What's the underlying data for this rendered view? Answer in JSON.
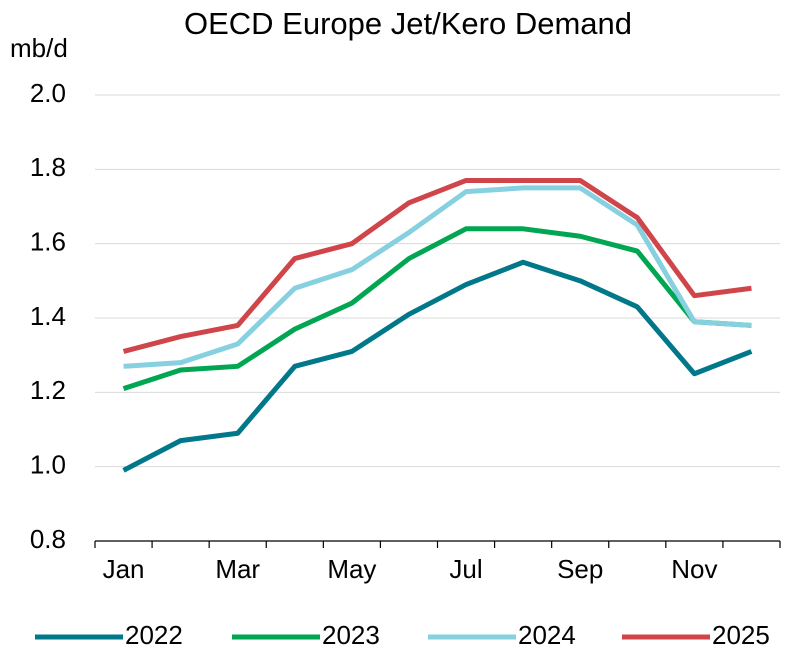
{
  "chart_data": {
    "type": "line",
    "title": "OECD Europe Jet/Kero Demand",
    "y_label": "mb/d",
    "categories": [
      "Jan",
      null,
      "Mar",
      null,
      "May",
      null,
      "Jul",
      null,
      "Sep",
      null,
      "Nov",
      null
    ],
    "series": [
      {
        "name": "2022",
        "color": "#00788a",
        "values": [
          0.99,
          1.07,
          1.09,
          1.27,
          1.31,
          1.41,
          1.49,
          1.55,
          1.5,
          1.43,
          1.25,
          1.31
        ]
      },
      {
        "name": "2023",
        "color": "#00a651",
        "values": [
          1.21,
          1.26,
          1.27,
          1.37,
          1.44,
          1.56,
          1.64,
          1.64,
          1.62,
          1.58,
          1.39,
          1.38
        ]
      },
      {
        "name": "2024",
        "color": "#86d0e0",
        "values": [
          1.27,
          1.28,
          1.33,
          1.48,
          1.53,
          1.63,
          1.74,
          1.75,
          1.75,
          1.65,
          1.39,
          1.38
        ]
      },
      {
        "name": "2025",
        "color": "#d0454a",
        "values": [
          1.31,
          1.35,
          1.38,
          1.56,
          1.6,
          1.71,
          1.77,
          1.77,
          1.77,
          1.67,
          1.46,
          1.48
        ]
      }
    ],
    "ylim": [
      0.8,
      2.0
    ],
    "yticks": [
      0.8,
      {
        "value": 1,
        "label": "1.0"
      },
      1.2,
      1.4,
      1.6,
      1.8,
      {
        "value": 2,
        "label": "2.0"
      }
    ],
    "grid": true,
    "legend": "bottom"
  }
}
